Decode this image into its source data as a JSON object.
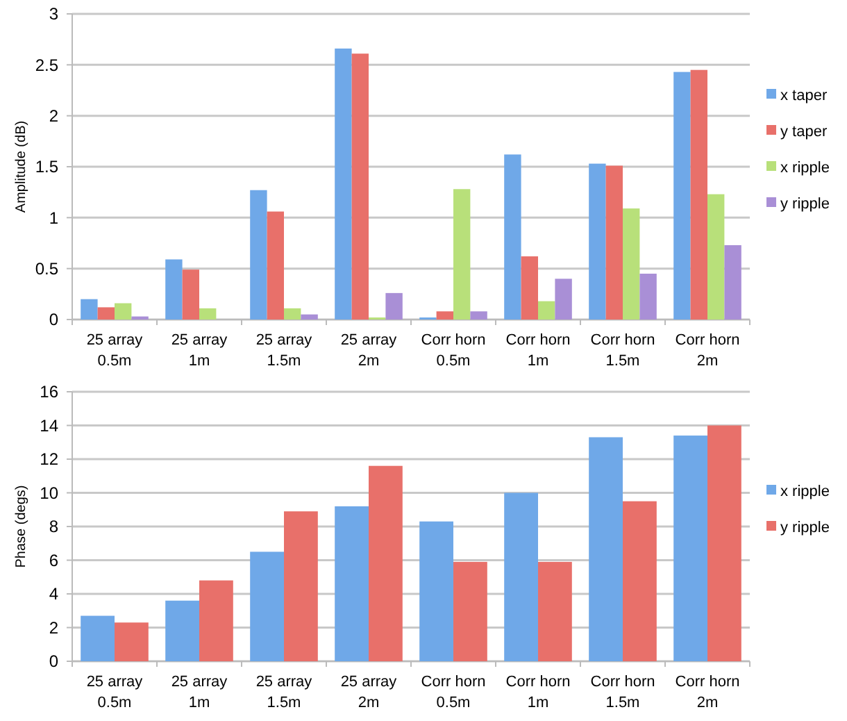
{
  "chart_data": [
    {
      "type": "bar",
      "ylabel": "Amplitude (dB)",
      "categories": [
        "25 array 0.5m",
        "25 array 1m",
        "25 array 1.5m",
        "25 array 2m",
        "Corr horn 0.5m",
        "Corr horn 1m",
        "Corr horn 1.5m",
        "Corr horn 2m"
      ],
      "series": [
        {
          "name": "x taper",
          "color": "#6fa8e8",
          "values": [
            0.2,
            0.59,
            1.27,
            2.66,
            0.02,
            1.62,
            1.53,
            2.43
          ]
        },
        {
          "name": "y taper",
          "color": "#e8706a",
          "values": [
            0.12,
            0.49,
            1.06,
            2.61,
            0.08,
            0.62,
            1.51,
            2.45
          ]
        },
        {
          "name": "x ripple",
          "color": "#b8e07a",
          "values": [
            0.16,
            0.11,
            0.11,
            0.02,
            1.28,
            0.18,
            1.09,
            1.23
          ]
        },
        {
          "name": "y ripple",
          "color": "#a98fd6",
          "values": [
            0.03,
            0,
            0.05,
            0.26,
            0.08,
            0.4,
            0.45,
            0.73
          ]
        }
      ],
      "ylim": [
        0,
        3
      ],
      "yticks": [
        0,
        0.5,
        1,
        1.5,
        2,
        2.5,
        3
      ],
      "grid": "y",
      "legend": "right"
    },
    {
      "type": "bar",
      "ylabel": "Phase (degs)",
      "categories": [
        "25 array 0.5m",
        "25 array 1m",
        "25 array 1.5m",
        "25 array 2m",
        "Corr horn 0.5m",
        "Corr horn 1m",
        "Corr horn 1.5m",
        "Corr horn 2m"
      ],
      "series": [
        {
          "name": "x ripple",
          "color": "#6fa8e8",
          "values": [
            2.7,
            3.6,
            6.5,
            9.2,
            8.3,
            10,
            13.3,
            13.4
          ]
        },
        {
          "name": "y ripple",
          "color": "#e8706a",
          "values": [
            2.3,
            4.8,
            8.9,
            11.6,
            5.9,
            5.9,
            9.5,
            14
          ]
        }
      ],
      "ylim": [
        0,
        16
      ],
      "yticks": [
        0,
        2,
        4,
        6,
        8,
        10,
        12,
        14,
        16
      ],
      "grid": "y",
      "legend": "right"
    }
  ]
}
